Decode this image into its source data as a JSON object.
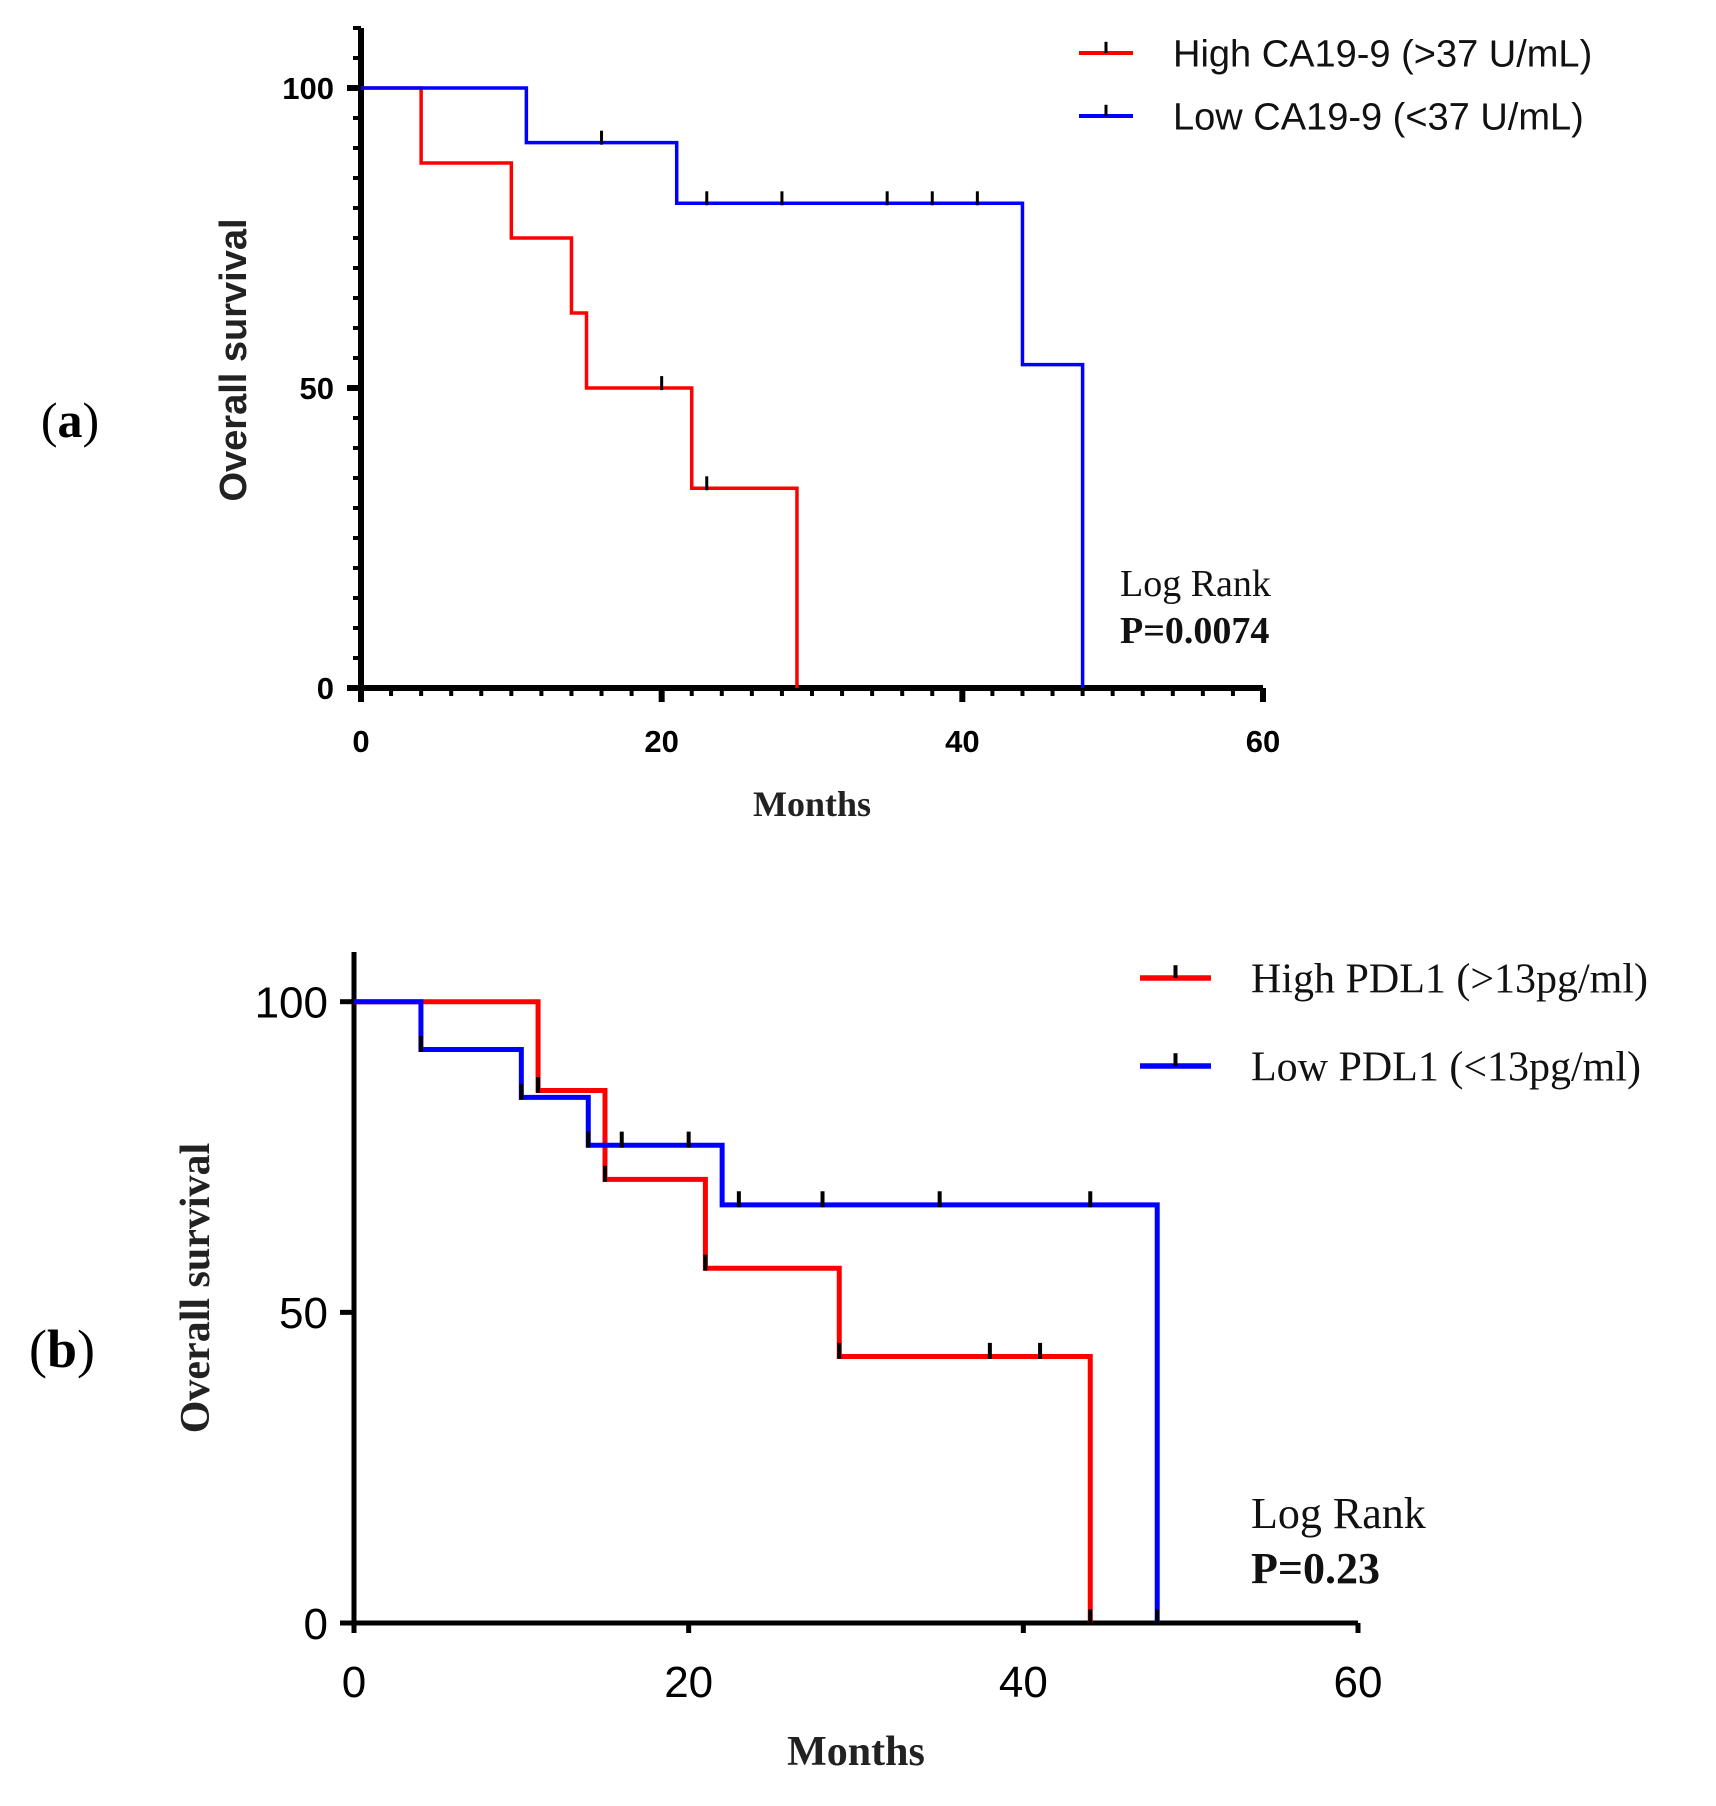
{
  "chart_data": [
    {
      "type": "line",
      "subtype": "kaplan-meier step",
      "panel_label": "(a)",
      "panel_letter": "a",
      "xlabel": "Months",
      "ylabel": "Overall survival",
      "xlim": [
        0,
        60
      ],
      "ylim": [
        0,
        110
      ],
      "xticks": [
        0,
        20,
        40,
        60
      ],
      "yticks": [
        0,
        50,
        100
      ],
      "xtick_labels": [
        "0",
        "20",
        "40",
        "60"
      ],
      "ytick_labels": [
        "0",
        "50",
        "100"
      ],
      "x_minor_step": 2,
      "y_minor_step": 5,
      "legend_position": "top-right",
      "annotation": {
        "line1": "Log Rank",
        "line2": "P=0.0074"
      },
      "series": [
        {
          "name": "High CA19-9 (>37 U/mL)",
          "color": "#ff0000",
          "steps": [
            [
              0,
              100
            ],
            [
              4,
              87.5
            ],
            [
              10,
              75
            ],
            [
              14,
              62.5
            ],
            [
              15,
              50
            ],
            [
              22,
              33.3
            ],
            [
              29,
              0
            ]
          ],
          "censored": [
            [
              20,
              50
            ],
            [
              23,
              33.3
            ]
          ]
        },
        {
          "name": "Low CA19-9 (<37 U/mL)",
          "color": "#0000ff",
          "steps": [
            [
              0,
              100
            ],
            [
              11,
              90.9
            ],
            [
              21,
              80.8
            ],
            [
              44,
              53.9
            ],
            [
              48,
              0
            ]
          ],
          "censored": [
            [
              16,
              90.9
            ],
            [
              23,
              80.8
            ],
            [
              28,
              80.8
            ],
            [
              35,
              80.8
            ],
            [
              38,
              80.8
            ],
            [
              41,
              80.8
            ]
          ]
        }
      ]
    },
    {
      "type": "line",
      "subtype": "kaplan-meier step",
      "panel_label": "(b)",
      "panel_letter": "b",
      "xlabel": "Months",
      "ylabel": "Overall survival",
      "xlim": [
        0,
        60
      ],
      "ylim": [
        0,
        108
      ],
      "xticks": [
        0,
        20,
        40,
        60
      ],
      "yticks": [
        0,
        50,
        100
      ],
      "xtick_labels": [
        "0",
        "20",
        "40",
        "60"
      ],
      "ytick_labels": [
        "0",
        "50",
        "100"
      ],
      "legend_position": "top-right",
      "annotation": {
        "line1": "Log Rank",
        "line2": "P=0.23"
      },
      "series": [
        {
          "name": "High PDL1 (>13pg/ml)",
          "color": "#ff0000",
          "steps": [
            [
              0,
              100
            ],
            [
              11,
              85.7
            ],
            [
              15,
              71.4
            ],
            [
              21,
              57.1
            ],
            [
              29,
              42.9
            ],
            [
              44,
              0
            ]
          ],
          "censored": [
            [
              11,
              85.7
            ],
            [
              15,
              71.4
            ],
            [
              21,
              57.1
            ],
            [
              29,
              42.9
            ],
            [
              38,
              42.9
            ],
            [
              41,
              42.9
            ],
            [
              44,
              0
            ]
          ]
        },
        {
          "name": "Low PDL1 (<13pg/ml)",
          "color": "#0000ff",
          "steps": [
            [
              0,
              100
            ],
            [
              4,
              92.3
            ],
            [
              10,
              84.6
            ],
            [
              14,
              76.9
            ],
            [
              22,
              67.3
            ],
            [
              48,
              0
            ]
          ],
          "censored": [
            [
              4,
              92.3
            ],
            [
              10,
              84.6
            ],
            [
              14,
              76.9
            ],
            [
              16,
              76.9
            ],
            [
              20,
              76.9
            ],
            [
              23,
              67.3
            ],
            [
              28,
              67.3
            ],
            [
              35,
              67.3
            ],
            [
              44,
              67.3
            ],
            [
              48,
              0
            ]
          ]
        }
      ]
    }
  ]
}
